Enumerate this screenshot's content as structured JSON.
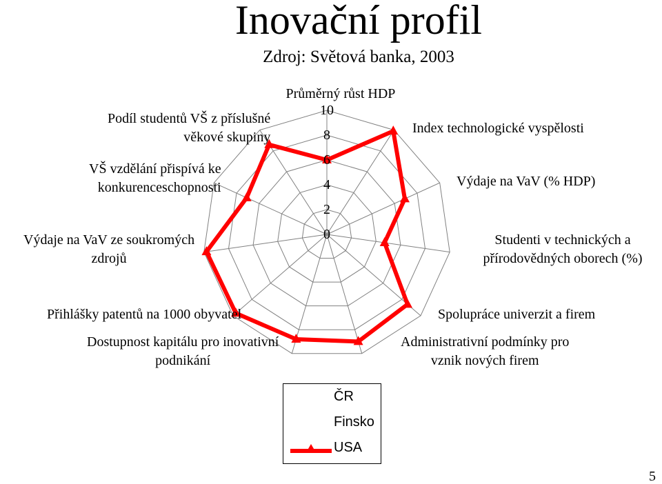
{
  "page": {
    "number": "5"
  },
  "chart_data": {
    "type": "radar",
    "title": "Inovační profil",
    "subtitle": "Zdroj: Světová banka, 2003",
    "rmin": 0,
    "rmax": 10,
    "ticks": [
      "0",
      "2",
      "4",
      "6",
      "8",
      "10"
    ],
    "grid": true,
    "axes": [
      [
        "Průměrný růst HDP"
      ],
      [
        "Index technologické vyspělosti"
      ],
      [
        "Výdaje na VaV (% HDP)"
      ],
      [
        "Studenti v technických a",
        "přírodovědných oborech (%)"
      ],
      [
        "Spolupráce univerzit a firem"
      ],
      [
        "Administrativní podmínky pro",
        "vznik nových firem"
      ],
      [
        "Dostupnost kapitálu pro inovativní",
        "podnikání"
      ],
      [
        "Přihlášky patentů na 1000 obyvatel"
      ],
      [
        "Výdaje na VaV ze soukromých",
        "zdrojů"
      ],
      [
        "VŠ vzdělání přispívá ke",
        "konkurenceschopnosti"
      ],
      [
        "Podíl studentů VŠ z příslušné",
        "věkové skupiny"
      ]
    ],
    "series": [
      {
        "name": "ČR",
        "values": []
      },
      {
        "name": "Finsko",
        "values": []
      },
      {
        "name": "USA",
        "color": "#ff0000",
        "values": [
          6.0,
          9.9,
          6.9,
          4.7,
          8.6,
          9.0,
          8.8,
          9.7,
          9.8,
          7.1,
          8.6
        ]
      }
    ],
    "legend": "bottom-center"
  }
}
